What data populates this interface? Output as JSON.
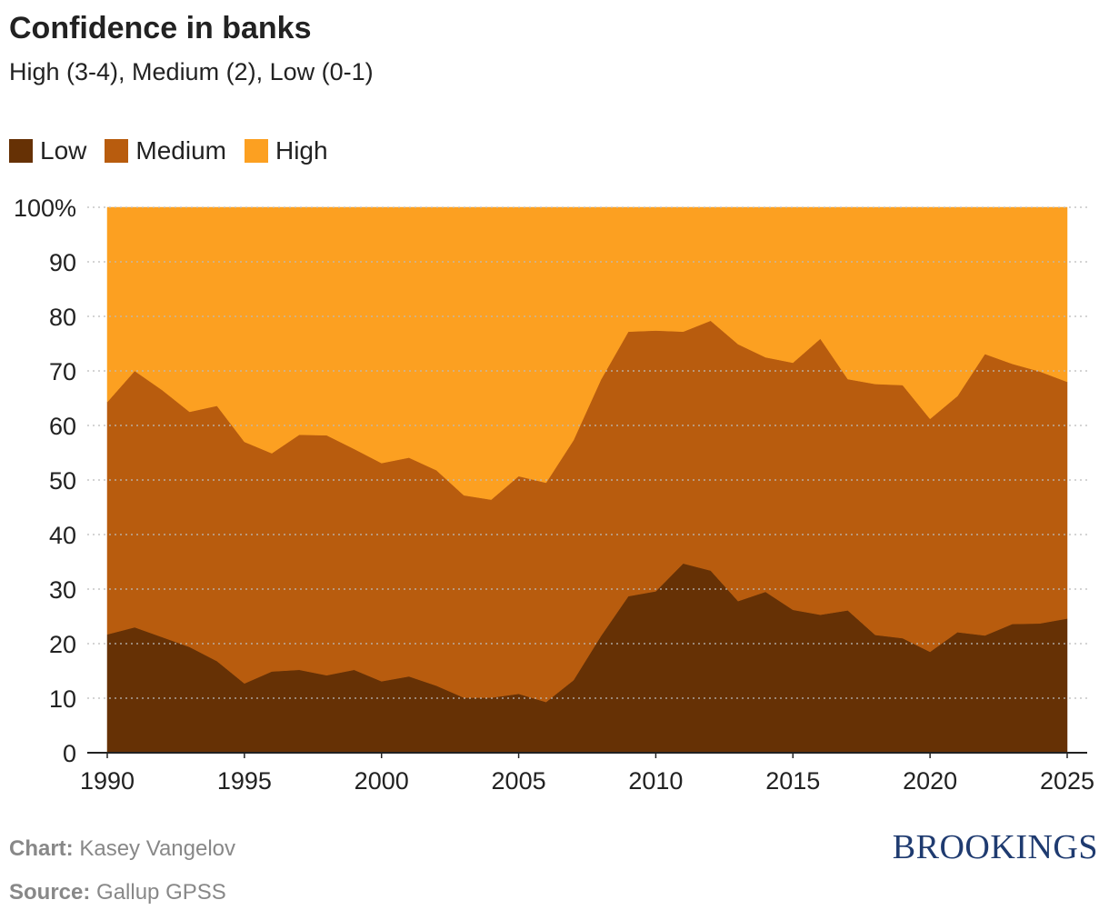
{
  "title": "Confidence in banks",
  "subtitle": "High (3-4), Medium (2), Low (0-1)",
  "legend": [
    {
      "label": "Low",
      "color": "#663105"
    },
    {
      "label": "Medium",
      "color": "#b85c0e"
    },
    {
      "label": "High",
      "color": "#fca021"
    }
  ],
  "footer": {
    "chart_label": "Chart:",
    "chart_author": "Kasey Vangelov",
    "source_label": "Source:",
    "source_value": "Gallup GPSS"
  },
  "logo": "BROOKINGS",
  "chart_data": {
    "type": "area",
    "stacked": true,
    "title": "Confidence in banks",
    "subtitle": "High (3-4), Medium (2), Low (0-1)",
    "x": [
      1990,
      1991,
      1992,
      1993,
      1994,
      1995,
      1996,
      1997,
      1998,
      1999,
      2000,
      2001,
      2002,
      2003,
      2004,
      2005,
      2006,
      2007,
      2008,
      2009,
      2010,
      2011,
      2012,
      2013,
      2014,
      2015,
      2016,
      2017,
      2018,
      2019,
      2020,
      2021,
      2022,
      2023,
      2024,
      2025
    ],
    "xticks": [
      1990,
      1995,
      2000,
      2005,
      2010,
      2015,
      2020,
      2025
    ],
    "yticks": [
      0,
      10,
      20,
      30,
      40,
      50,
      60,
      70,
      80,
      90,
      100
    ],
    "ytick_labels": [
      "0",
      "10",
      "20",
      "30",
      "40",
      "50",
      "60",
      "70",
      "80",
      "90",
      "100%"
    ],
    "ylim": [
      0,
      100
    ],
    "grid": true,
    "legend_position": "top-left",
    "series": [
      {
        "name": "Low",
        "color": "#663105",
        "values": [
          21.7,
          23.0,
          21.2,
          19.4,
          16.8,
          12.7,
          14.9,
          15.2,
          14.2,
          15.2,
          13.1,
          14.0,
          12.3,
          10.1,
          10.1,
          10.8,
          9.3,
          13.3,
          21.4,
          28.7,
          29.6,
          34.7,
          33.4,
          27.8,
          29.5,
          26.2,
          25.3,
          26.1,
          21.6,
          21.0,
          18.5,
          22.1,
          21.5,
          23.6,
          23.7,
          24.6
        ]
      },
      {
        "name": "Medium",
        "color": "#b85c0e",
        "values": [
          42.6,
          47.0,
          45.3,
          43.1,
          46.8,
          44.3,
          40.0,
          43.1,
          44.0,
          40.5,
          40.0,
          40.1,
          39.5,
          37.1,
          36.3,
          39.9,
          40.2,
          44.0,
          47.0,
          48.5,
          47.8,
          42.5,
          45.8,
          47.1,
          43.0,
          45.3,
          50.6,
          42.4,
          46.0,
          46.4,
          42.7,
          43.3,
          51.6,
          47.7,
          46.2,
          43.4
        ]
      },
      {
        "name": "High",
        "color": "#fca021",
        "values": [
          35.7,
          30.0,
          33.5,
          37.5,
          36.4,
          43.0,
          45.1,
          41.7,
          41.8,
          44.3,
          46.9,
          45.9,
          48.2,
          52.8,
          53.6,
          49.3,
          50.5,
          42.7,
          31.6,
          22.8,
          22.6,
          22.8,
          20.8,
          25.1,
          27.5,
          28.5,
          24.1,
          31.5,
          32.4,
          32.6,
          38.8,
          34.6,
          26.9,
          28.7,
          30.1,
          32.0
        ]
      }
    ]
  }
}
